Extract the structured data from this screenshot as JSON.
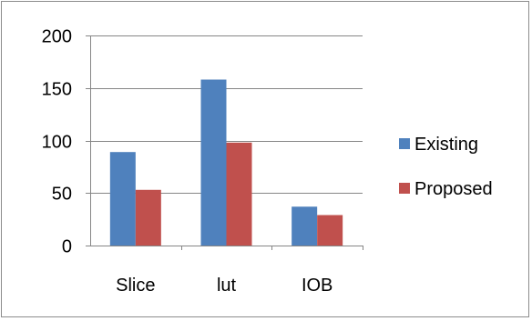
{
  "chart_data": {
    "type": "bar",
    "title": "",
    "xlabel": "",
    "ylabel": "",
    "categories": [
      "Slice",
      "lut",
      "IOB"
    ],
    "series": [
      {
        "name": "Existing",
        "values": [
          89,
          158,
          37
        ],
        "color": "#4f81bd"
      },
      {
        "name": "Proposed",
        "values": [
          53,
          98,
          29
        ],
        "color": "#c0504d"
      }
    ],
    "ylim": [
      0,
      200
    ],
    "yticks": [
      0,
      50,
      100,
      150,
      200
    ],
    "grid": true,
    "legend_position": "right"
  }
}
